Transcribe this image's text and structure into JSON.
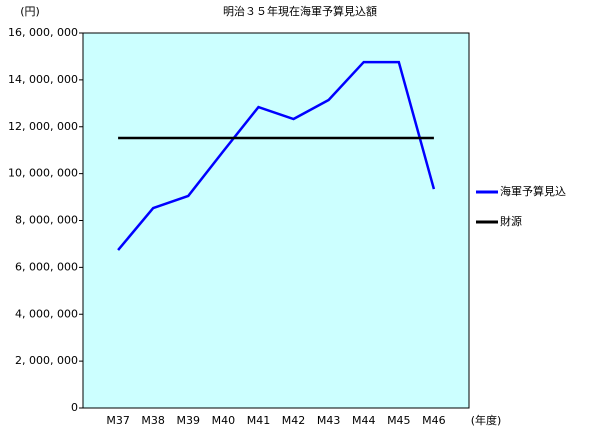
{
  "chart_data": {
    "type": "line",
    "title": "明治３５年現在海軍予算見込額",
    "y_unit": "(円)",
    "x_unit": "(年度)",
    "categories": [
      "M37",
      "M38",
      "M39",
      "M40",
      "M41",
      "M42",
      "M43",
      "M44",
      "M45",
      "M46"
    ],
    "series": [
      {
        "name": "海軍予算見込",
        "color": "#0000ff",
        "values": [
          6740000,
          8530000,
          9050000,
          10960000,
          12840000,
          12330000,
          13140000,
          14760000,
          14760000,
          9340000
        ]
      },
      {
        "name": "財源",
        "color": "#000000",
        "values": [
          11520000,
          11520000,
          11520000,
          11520000,
          11520000,
          11520000,
          11520000,
          11520000,
          11520000,
          11520000
        ]
      }
    ],
    "ylim": [
      0,
      16000000
    ],
    "yticks": [
      0,
      {
        "value": 2000000,
        "label": "2, 000, 000"
      },
      {
        "value": 4000000,
        "label": "4, 000, 000"
      },
      {
        "value": 6000000,
        "label": "6, 000, 000"
      },
      {
        "value": 8000000,
        "label": "8, 000, 000"
      },
      {
        "value": 10000000,
        "label": "10, 000, 000"
      },
      {
        "value": 12000000,
        "label": "12, 000, 000"
      },
      {
        "value": 14000000,
        "label": "14, 000, 000"
      },
      {
        "value": 16000000,
        "label": "16, 000, 000"
      }
    ],
    "plot_background": "#ccffff",
    "legend": "right"
  }
}
